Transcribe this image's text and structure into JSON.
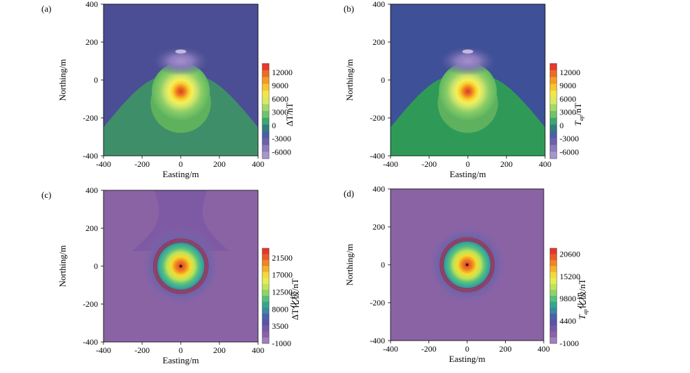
{
  "chart_data": [
    {
      "panel_label": "(a)",
      "type": "heatmap",
      "xlabel": "Easting/m",
      "ylabel": "Northing/m",
      "xlim": [
        -400,
        400
      ],
      "ylim": [
        -400,
        400
      ],
      "x_ticks": [
        "-400",
        "-200",
        "0",
        "200",
        "400"
      ],
      "y_ticks": [
        "400",
        "200",
        "0",
        "-200",
        "-400"
      ],
      "colorbar_label": "ΔT/nT",
      "colorbar_ticks": [
        "12000",
        "9000",
        "6000",
        "3000",
        "0",
        "-3000",
        "-6000"
      ],
      "colorbar_range": [
        -7500,
        14000
      ],
      "background_color": "#4b4e94",
      "features": [
        {
          "kind": "positive_peak",
          "x": 0,
          "y": -60,
          "value": 13000
        },
        {
          "kind": "negative_low",
          "x": 0,
          "y": 100,
          "value": -6000
        },
        {
          "kind": "zero_contour_dome",
          "apex_y": 30,
          "edge_y": -250
        }
      ]
    },
    {
      "panel_label": "(b)",
      "type": "heatmap",
      "xlabel": "Easting/m",
      "ylabel": "Northing/m",
      "xlim": [
        -400,
        400
      ],
      "ylim": [
        -400,
        400
      ],
      "x_ticks": [
        "-400",
        "-200",
        "0",
        "200",
        "400"
      ],
      "y_ticks": [
        "400",
        "200",
        "0",
        "-200",
        "-400"
      ],
      "colorbar_label_main": "T",
      "colorbar_label_sub": "ap",
      "colorbar_label_unit": "/nT",
      "colorbar_ticks": [
        "12000",
        "9000",
        "6000",
        "3000",
        "0",
        "-3000",
        "-6000"
      ],
      "colorbar_range": [
        -7500,
        14000
      ],
      "background_color": "#3e5097",
      "features": [
        {
          "kind": "positive_peak",
          "x": 0,
          "y": -60,
          "value": 13000
        },
        {
          "kind": "negative_low",
          "x": 0,
          "y": 100,
          "value": -6000
        },
        {
          "kind": "zero_contour_dome",
          "apex_y": 30,
          "edge_y": -250
        }
      ]
    },
    {
      "panel_label": "(c)",
      "type": "heatmap",
      "xlabel": "Easting/m",
      "ylabel": "Northing/m",
      "xlim": [
        -400,
        400
      ],
      "ylim": [
        -400,
        400
      ],
      "x_ticks": [
        "-400",
        "-200",
        "0",
        "200",
        "400"
      ],
      "y_ticks": [
        "400",
        "200",
        "0",
        "-200",
        "-400"
      ],
      "colorbar_label": "ΔT化极/nT",
      "colorbar_ticks": [
        "21500",
        "17000",
        "12500",
        "8000",
        "3500",
        "-1000"
      ],
      "colorbar_range": [
        -1000,
        24000
      ],
      "background_color": "#8a63a5",
      "features": [
        {
          "kind": "positive_peak",
          "x": 0,
          "y": 0,
          "value": 22000
        },
        {
          "kind": "red_ring",
          "x": 0,
          "y": 0,
          "radius": 140
        }
      ]
    },
    {
      "panel_label": "(d)",
      "type": "heatmap",
      "xlabel": "Easting/m",
      "ylabel": "Northing/m",
      "xlim": [
        -400,
        400
      ],
      "ylim": [
        -400,
        400
      ],
      "x_ticks": [
        "-400",
        "-200",
        "0",
        "200",
        "400"
      ],
      "y_ticks": [
        "400",
        "200",
        "0",
        "-200",
        "-400"
      ],
      "colorbar_label_main": "T",
      "colorbar_label_sub": "ap",
      "colorbar_label_unit": "化极/nT",
      "colorbar_ticks": [
        "20600",
        "15200",
        "9800",
        "4400",
        "-1000"
      ],
      "colorbar_range": [
        -1000,
        22000
      ],
      "background_color": "#8a63a5",
      "features": [
        {
          "kind": "positive_peak",
          "x": 0,
          "y": 0,
          "value": 21000
        },
        {
          "kind": "red_ring",
          "x": 0,
          "y": 0,
          "radius": 140
        }
      ]
    }
  ]
}
